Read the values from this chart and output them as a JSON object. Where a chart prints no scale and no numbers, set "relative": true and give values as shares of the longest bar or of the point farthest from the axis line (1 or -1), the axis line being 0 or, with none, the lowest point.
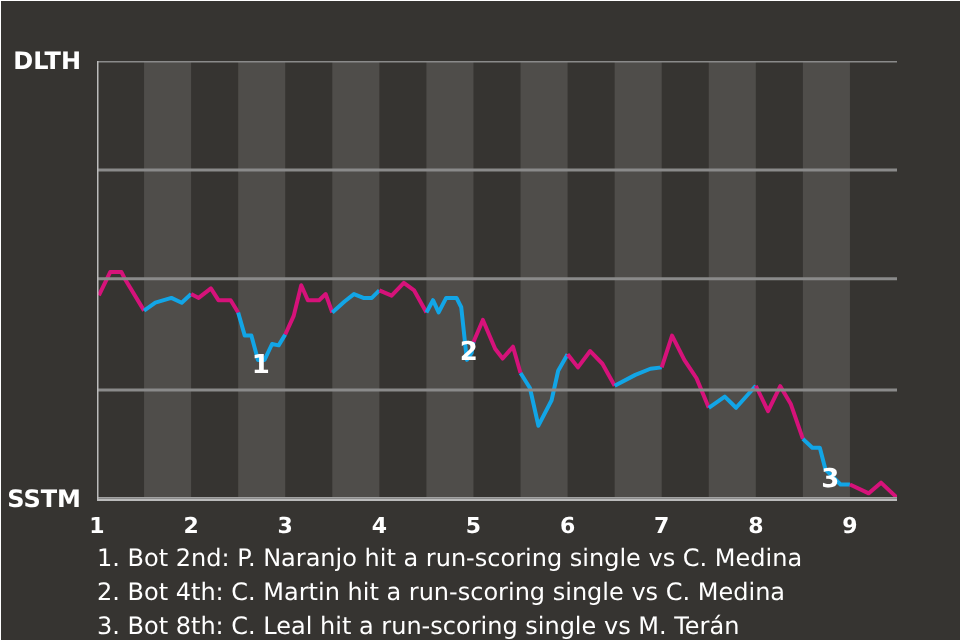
{
  "chart_data": {
    "type": "line",
    "relative": true,
    "xlim": [
      1,
      9.5
    ],
    "xticks": [
      1,
      2,
      3,
      4,
      5,
      6,
      7,
      8,
      9
    ],
    "line_style": "solid",
    "marker": "none",
    "series": [
      {
        "color": "#d6127a",
        "x": [
          1.02,
          1.14,
          1.26,
          1.3,
          1.5
        ],
        "values": [
          0.897,
          1,
          1,
          0.967,
          0.83
        ]
      },
      {
        "color": "#12a5e6",
        "x": [
          1.5,
          1.62,
          1.79,
          1.9,
          2
        ],
        "values": [
          0.83,
          0.865,
          0.886,
          0.865,
          0.903
        ]
      },
      {
        "color": "#d6127a",
        "x": [
          2,
          2.08,
          2.21,
          2.29,
          2.42,
          2.5
        ],
        "values": [
          0.903,
          0.886,
          0.928,
          0.876,
          0.876,
          0.822
        ]
      },
      {
        "color": "#12a5e6",
        "x": [
          2.5,
          2.57,
          2.64,
          2.71,
          2.78,
          2.86,
          2.93,
          3
        ],
        "values": [
          0.822,
          0.72,
          0.72,
          0.613,
          0.613,
          0.683,
          0.677,
          0.725
        ]
      },
      {
        "color": "#d6127a",
        "x": [
          3,
          3.09,
          3.17,
          3.24,
          3.36,
          3.43,
          3.5
        ],
        "values": [
          0.725,
          0.807,
          0.942,
          0.876,
          0.876,
          0.903,
          0.822
        ]
      },
      {
        "color": "#12a5e6",
        "x": [
          3.5,
          3.63,
          3.73,
          3.83,
          3.92,
          4
        ],
        "values": [
          0.822,
          0.87,
          0.903,
          0.886,
          0.886,
          0.919
        ]
      },
      {
        "color": "#d6127a",
        "x": [
          4,
          4.13,
          4.26,
          4.37,
          4.5
        ],
        "values": [
          0.919,
          0.896,
          0.952,
          0.919,
          0.822
        ]
      },
      {
        "color": "#12a5e6",
        "x": [
          4.5,
          4.57,
          4.63,
          4.71,
          4.82,
          4.87,
          4.93,
          4.98,
          5
        ],
        "values": [
          0.822,
          0.876,
          0.822,
          0.886,
          0.886,
          0.845,
          0.613,
          0.644,
          0.692
        ]
      },
      {
        "color": "#d6127a",
        "x": [
          5,
          5.1,
          5.23,
          5.31,
          5.42,
          5.5
        ],
        "values": [
          0.692,
          0.789,
          0.662,
          0.619,
          0.671,
          0.555
        ]
      },
      {
        "color": "#12a5e6",
        "x": [
          5.5,
          5.6,
          5.69,
          5.83,
          5.9,
          6
        ],
        "values": [
          0.555,
          0.489,
          0.323,
          0.435,
          0.565,
          0.638
        ]
      },
      {
        "color": "#d6127a",
        "x": [
          6,
          6.11,
          6.24,
          6.37,
          6.5
        ],
        "values": [
          0.638,
          0.58,
          0.652,
          0.596,
          0.499
        ]
      },
      {
        "color": "#12a5e6",
        "x": [
          6.5,
          6.72,
          6.88,
          7
        ],
        "values": [
          0.499,
          0.547,
          0.574,
          0.58
        ]
      },
      {
        "color": "#d6127a",
        "x": [
          7,
          7.11,
          7.24,
          7.37,
          7.5
        ],
        "values": [
          0.58,
          0.72,
          0.613,
          0.532,
          0.402
        ]
      },
      {
        "color": "#12a5e6",
        "x": [
          7.5,
          7.67,
          7.79,
          8
        ],
        "values": [
          0.402,
          0.451,
          0.402,
          0.499
        ]
      },
      {
        "color": "#d6127a",
        "x": [
          8,
          8.13,
          8.26,
          8.37,
          8.5
        ],
        "values": [
          0.499,
          0.387,
          0.497,
          0.42,
          0.265
        ]
      },
      {
        "color": "#12a5e6",
        "x": [
          8.5,
          8.6,
          8.68,
          8.74,
          8.9,
          9
        ],
        "values": [
          0.265,
          0.226,
          0.226,
          0.13,
          0.064,
          0.064
        ]
      },
      {
        "color": "#d6127a",
        "x": [
          9,
          9.2,
          9.33,
          9.5
        ],
        "values": [
          0.064,
          0.025,
          0.072,
          0.006
        ]
      }
    ],
    "ref_lines": [
      {
        "axis": "y",
        "value": 0,
        "label": "SSTM",
        "color": "#8a8a8a"
      },
      {
        "axis": "y",
        "value": 0.48,
        "label": null,
        "color": "#8a8a8a"
      },
      {
        "axis": "y",
        "value": 0.97,
        "label": null,
        "color": "#8a8a8a"
      },
      {
        "axis": "y",
        "value": 1.45,
        "label": null,
        "color": "#8a8a8a"
      },
      {
        "axis": "y",
        "value": 1.93,
        "label": "DLTH",
        "color": "#8a8a8a"
      }
    ],
    "bands": [
      {
        "axis": "x",
        "from": 1.5,
        "to": 2,
        "label": null,
        "color": "#4f4d4a"
      },
      {
        "axis": "x",
        "from": 2.5,
        "to": 3,
        "label": null,
        "color": "#4f4d4a"
      },
      {
        "axis": "x",
        "from": 3.5,
        "to": 4,
        "label": null,
        "color": "#4f4d4a"
      },
      {
        "axis": "x",
        "from": 4.5,
        "to": 5,
        "label": null,
        "color": "#4f4d4a"
      },
      {
        "axis": "x",
        "from": 5.5,
        "to": 6,
        "label": null,
        "color": "#4f4d4a"
      },
      {
        "axis": "x",
        "from": 6.5,
        "to": 7,
        "label": null,
        "color": "#4f4d4a"
      },
      {
        "axis": "x",
        "from": 7.5,
        "to": 8,
        "label": null,
        "color": "#4f4d4a"
      },
      {
        "axis": "x",
        "from": 8.5,
        "to": 9,
        "label": null,
        "color": "#4f4d4a"
      }
    ],
    "annotations": [
      {
        "text": "1",
        "x": 2.74,
        "y": 0.6
      },
      {
        "text": "2",
        "x": 4.95,
        "y": 0.658
      },
      {
        "text": "3",
        "x": 8.79,
        "y": 0.097
      },
      "1. Bot 2nd: P. Naranjo hit a run-scoring single vs C. Medina",
      "2. Bot 4th: C. Martin hit a run-scoring single vs C. Medina",
      "3. Bot 8th: C. Leal hit a run-scoring single vs M. Terán"
    ]
  }
}
